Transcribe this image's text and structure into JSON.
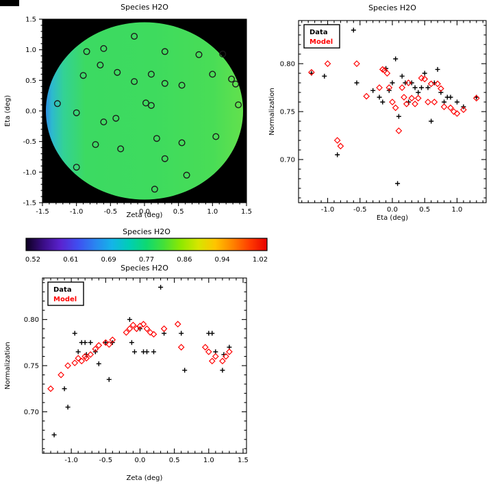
{
  "window": {
    "background": "#ffffff"
  },
  "colors": {
    "data": "#000000",
    "model": "#ff0000",
    "axis": "#000000",
    "sky_background": "#000000"
  },
  "chart_data": [
    {
      "id": "skymap",
      "type": "skymap_scatter",
      "title": "Species H2O",
      "xlabel": "Zeta (deg)",
      "ylabel": "Eta (deg)",
      "xlim": [
        -1.5,
        1.5
      ],
      "ylim": [
        -1.5,
        1.5
      ],
      "xticks": [
        -1.5,
        -1.0,
        -0.5,
        0.0,
        0.5,
        1.0,
        1.5
      ],
      "xtick_labels": [
        "-1.5",
        "-1.0",
        "-0.5",
        "0.0",
        "0.5",
        "1.0",
        "1.5"
      ],
      "yticks": [
        -1.5,
        -1.0,
        -0.5,
        0.0,
        0.5,
        1.0,
        1.5
      ],
      "ytick_labels": [
        "-1.5",
        "-1.0",
        "-0.5",
        "0.0",
        "0.5",
        "1.0",
        "1.5"
      ],
      "plot_bg": "#000000",
      "marker": "circle",
      "marker_color": "#1c1c1c",
      "field": {
        "shape": "disk",
        "radius_deg": 1.45,
        "gradient": [
          {
            "offset": 0.0,
            "color": "#2f8fe0"
          },
          {
            "offset": 0.03,
            "color": "#2db9cf"
          },
          {
            "offset": 0.09,
            "color": "#33d295"
          },
          {
            "offset": 0.2,
            "color": "#3cda62"
          },
          {
            "offset": 0.55,
            "color": "#3edb5e"
          },
          {
            "offset": 0.85,
            "color": "#49dd56"
          },
          {
            "offset": 1.0,
            "color": "#63e14d"
          }
        ]
      },
      "sources": [
        [
          -0.85,
          0.97
        ],
        [
          -0.6,
          1.02
        ],
        [
          -0.15,
          1.22
        ],
        [
          0.3,
          0.97
        ],
        [
          0.8,
          0.92
        ],
        [
          1.15,
          0.93
        ],
        [
          -0.9,
          0.58
        ],
        [
          -0.65,
          0.75
        ],
        [
          -0.4,
          0.63
        ],
        [
          -0.15,
          0.48
        ],
        [
          0.1,
          0.6
        ],
        [
          0.3,
          0.45
        ],
        [
          0.55,
          0.42
        ],
        [
          1.0,
          0.6
        ],
        [
          1.28,
          0.52
        ],
        [
          1.34,
          0.44
        ],
        [
          -1.28,
          0.12
        ],
        [
          -1.0,
          -0.03
        ],
        [
          -0.6,
          -0.18
        ],
        [
          -0.42,
          -0.12
        ],
        [
          0.02,
          0.13
        ],
        [
          0.1,
          0.09
        ],
        [
          1.38,
          0.1
        ],
        [
          -0.72,
          -0.55
        ],
        [
          -0.35,
          -0.62
        ],
        [
          0.18,
          -0.45
        ],
        [
          0.55,
          -0.52
        ],
        [
          1.05,
          -0.42
        ],
        [
          -1.0,
          -0.92
        ],
        [
          0.3,
          -0.78
        ],
        [
          0.62,
          -1.05
        ],
        [
          0.15,
          -1.28
        ]
      ]
    },
    {
      "id": "norm_vs_eta",
      "type": "scatter",
      "title": "Species H2O",
      "xlabel": "Eta (deg)",
      "ylabel": "Normalization",
      "xlim": [
        -1.45,
        1.45
      ],
      "ylim": [
        0.655,
        0.845
      ],
      "xticks": [
        -1.0,
        -0.5,
        0.0,
        0.5,
        1.0
      ],
      "xtick_labels": [
        "-1.0",
        "-0.5",
        "0.0",
        "0.5",
        "1.0"
      ],
      "yticks": [
        0.7,
        0.75,
        0.8
      ],
      "ytick_labels": [
        "0.70",
        "0.75",
        "0.80"
      ],
      "legend": {
        "position": "top-left",
        "entries": [
          {
            "label": "Data",
            "color": "#000000",
            "marker": "plus"
          },
          {
            "label": "Model",
            "color": "#ff0000",
            "marker": "diamond"
          }
        ]
      },
      "series": [
        {
          "name": "Data",
          "marker": "plus",
          "color": "#000000",
          "points": [
            [
              -1.25,
              0.79
            ],
            [
              -1.05,
              0.787
            ],
            [
              -0.85,
              0.705
            ],
            [
              -0.6,
              0.835
            ],
            [
              -0.55,
              0.78
            ],
            [
              -0.3,
              0.772
            ],
            [
              -0.2,
              0.765
            ],
            [
              -0.15,
              0.76
            ],
            [
              -0.1,
              0.795
            ],
            [
              -0.05,
              0.772
            ],
            [
              0.0,
              0.78
            ],
            [
              0.05,
              0.805
            ],
            [
              0.08,
              0.675
            ],
            [
              0.1,
              0.745
            ],
            [
              0.15,
              0.787
            ],
            [
              0.2,
              0.78
            ],
            [
              0.25,
              0.76
            ],
            [
              0.3,
              0.78
            ],
            [
              0.35,
              0.775
            ],
            [
              0.4,
              0.77
            ],
            [
              0.45,
              0.775
            ],
            [
              0.5,
              0.79
            ],
            [
              0.55,
              0.775
            ],
            [
              0.6,
              0.74
            ],
            [
              0.65,
              0.78
            ],
            [
              0.7,
              0.794
            ],
            [
              0.75,
              0.77
            ],
            [
              0.8,
              0.76
            ],
            [
              0.85,
              0.765
            ],
            [
              0.9,
              0.765
            ],
            [
              1.0,
              0.76
            ],
            [
              1.1,
              0.755
            ],
            [
              1.3,
              0.765
            ]
          ]
        },
        {
          "name": "Model",
          "marker": "diamond",
          "color": "#ff0000",
          "points": [
            [
              -1.25,
              0.791
            ],
            [
              -1.0,
              0.8
            ],
            [
              -0.85,
              0.72
            ],
            [
              -0.8,
              0.714
            ],
            [
              -0.55,
              0.8
            ],
            [
              -0.4,
              0.766
            ],
            [
              -0.2,
              0.775
            ],
            [
              -0.15,
              0.794
            ],
            [
              -0.12,
              0.793
            ],
            [
              -0.08,
              0.79
            ],
            [
              -0.05,
              0.775
            ],
            [
              0.0,
              0.76
            ],
            [
              0.05,
              0.754
            ],
            [
              0.1,
              0.73
            ],
            [
              0.15,
              0.775
            ],
            [
              0.18,
              0.765
            ],
            [
              0.22,
              0.758
            ],
            [
              0.25,
              0.78
            ],
            [
              0.3,
              0.764
            ],
            [
              0.35,
              0.758
            ],
            [
              0.4,
              0.764
            ],
            [
              0.45,
              0.785
            ],
            [
              0.5,
              0.784
            ],
            [
              0.55,
              0.76
            ],
            [
              0.6,
              0.779
            ],
            [
              0.65,
              0.76
            ],
            [
              0.7,
              0.779
            ],
            [
              0.75,
              0.774
            ],
            [
              0.8,
              0.755
            ],
            [
              0.9,
              0.754
            ],
            [
              0.95,
              0.75
            ],
            [
              1.0,
              0.748
            ],
            [
              1.1,
              0.752
            ],
            [
              1.3,
              0.764
            ]
          ]
        }
      ]
    },
    {
      "id": "colorbar",
      "type": "colorbar",
      "title": "Species H2O",
      "ticks": [
        0.52,
        0.61,
        0.69,
        0.77,
        0.86,
        0.94,
        1.02
      ],
      "tick_labels": [
        "0.52",
        "0.61",
        "0.69",
        "0.77",
        "0.86",
        "0.94",
        "1.02"
      ],
      "colors": [
        "#0d0020",
        "#3a0d85",
        "#5a22cf",
        "#3f4ef0",
        "#2a84f0",
        "#14b4e8",
        "#00ceb4",
        "#0ed971",
        "#44e038",
        "#8ee800",
        "#d6e600",
        "#ffc400",
        "#ff8400",
        "#ff3c00",
        "#e80000"
      ]
    },
    {
      "id": "norm_vs_zeta",
      "type": "scatter",
      "title": "Species H2O",
      "xlabel": "Zeta (deg)",
      "ylabel": "Normalization",
      "xlim": [
        -1.42,
        1.55
      ],
      "ylim": [
        0.655,
        0.845
      ],
      "xticks": [
        -1.0,
        -0.5,
        0.0,
        0.5,
        1.0,
        1.5
      ],
      "xtick_labels": [
        "-1.0",
        "-0.5",
        "0.0",
        "0.5",
        "1.0",
        "1.5"
      ],
      "yticks": [
        0.7,
        0.75,
        0.8
      ],
      "ytick_labels": [
        "0.70",
        "0.75",
        "0.80"
      ],
      "legend": {
        "position": "top-left",
        "entries": [
          {
            "label": "Data",
            "color": "#000000",
            "marker": "plus"
          },
          {
            "label": "Model",
            "color": "#ff0000",
            "marker": "diamond"
          }
        ]
      },
      "series": [
        {
          "name": "Data",
          "marker": "plus",
          "color": "#000000",
          "points": [
            [
              -1.25,
              0.675
            ],
            [
              -1.1,
              0.725
            ],
            [
              -1.05,
              0.705
            ],
            [
              -0.95,
              0.785
            ],
            [
              -0.9,
              0.765
            ],
            [
              -0.85,
              0.775
            ],
            [
              -0.8,
              0.775
            ],
            [
              -0.78,
              0.762
            ],
            [
              -0.72,
              0.775
            ],
            [
              -0.65,
              0.765
            ],
            [
              -0.6,
              0.752
            ],
            [
              -0.5,
              0.775
            ],
            [
              -0.45,
              0.735
            ],
            [
              -0.4,
              0.775
            ],
            [
              -0.15,
              0.8
            ],
            [
              -0.12,
              0.775
            ],
            [
              -0.08,
              0.765
            ],
            [
              0.0,
              0.79
            ],
            [
              0.05,
              0.765
            ],
            [
              0.1,
              0.765
            ],
            [
              0.2,
              0.765
            ],
            [
              0.3,
              0.835
            ],
            [
              0.35,
              0.785
            ],
            [
              0.6,
              0.785
            ],
            [
              0.65,
              0.745
            ],
            [
              1.0,
              0.785
            ],
            [
              1.05,
              0.785
            ],
            [
              1.1,
              0.765
            ],
            [
              1.2,
              0.745
            ],
            [
              1.22,
              0.762
            ],
            [
              1.3,
              0.77
            ]
          ]
        },
        {
          "name": "Model",
          "marker": "diamond",
          "color": "#ff0000",
          "points": [
            [
              -1.3,
              0.725
            ],
            [
              -1.15,
              0.74
            ],
            [
              -1.05,
              0.75
            ],
            [
              -0.95,
              0.753
            ],
            [
              -0.9,
              0.758
            ],
            [
              -0.85,
              0.755
            ],
            [
              -0.8,
              0.76
            ],
            [
              -0.78,
              0.758
            ],
            [
              -0.72,
              0.762
            ],
            [
              -0.65,
              0.768
            ],
            [
              -0.6,
              0.772
            ],
            [
              -0.5,
              0.775
            ],
            [
              -0.45,
              0.773
            ],
            [
              -0.4,
              0.778
            ],
            [
              -0.2,
              0.786
            ],
            [
              -0.15,
              0.79
            ],
            [
              -0.1,
              0.794
            ],
            [
              -0.05,
              0.79
            ],
            [
              0.0,
              0.793
            ],
            [
              0.05,
              0.795
            ],
            [
              0.1,
              0.79
            ],
            [
              0.15,
              0.786
            ],
            [
              0.2,
              0.784
            ],
            [
              0.35,
              0.79
            ],
            [
              0.55,
              0.795
            ],
            [
              0.6,
              0.77
            ],
            [
              0.95,
              0.77
            ],
            [
              1.0,
              0.765
            ],
            [
              1.05,
              0.755
            ],
            [
              1.1,
              0.76
            ],
            [
              1.2,
              0.755
            ],
            [
              1.25,
              0.76
            ],
            [
              1.3,
              0.765
            ]
          ]
        }
      ]
    }
  ]
}
